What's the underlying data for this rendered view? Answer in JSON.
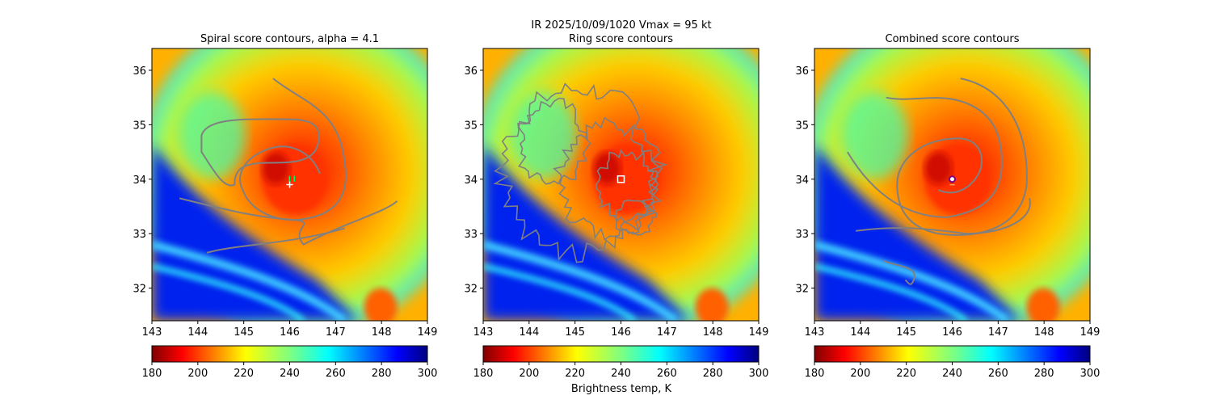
{
  "suptitle": "IR  2025/10/09/1020    Vmax = 95 kt",
  "colorbar_label": "Brightness temp, K",
  "chart_data": [
    {
      "type": "heatmap",
      "title": "Spiral score contours, alpha =  4.1",
      "xlim": [
        143,
        149
      ],
      "ylim": [
        31.4,
        36.4
      ],
      "xticks": [
        143,
        144,
        145,
        146,
        147,
        148,
        149
      ],
      "yticks": [
        32,
        33,
        34,
        35,
        36
      ],
      "colorbar": {
        "min": 180,
        "max": 300,
        "ticks": [
          180,
          200,
          220,
          240,
          260,
          280,
          300
        ],
        "colormap": "jet_r"
      },
      "marker": {
        "symbol": "+",
        "x": 146.0,
        "y": 33.9,
        "color": "#ffffff"
      },
      "marker2": {
        "symbol": "+",
        "x": 146.05,
        "y": 34.0,
        "color": "#00ff66"
      }
    },
    {
      "type": "heatmap",
      "title": "Ring score contours",
      "xlim": [
        143,
        149
      ],
      "ylim": [
        31.4,
        36.4
      ],
      "xticks": [
        143,
        144,
        145,
        146,
        147,
        148,
        149
      ],
      "yticks": [
        32,
        33,
        34,
        35,
        36
      ],
      "colorbar": {
        "min": 180,
        "max": 300,
        "ticks": [
          180,
          200,
          220,
          240,
          260,
          280,
          300
        ],
        "colormap": "jet_r"
      },
      "marker": {
        "symbol": "square",
        "x": 146.0,
        "y": 34.0,
        "color": "#ffffff"
      }
    },
    {
      "type": "heatmap",
      "title": "Combined score contours",
      "xlim": [
        143,
        149
      ],
      "ylim": [
        31.4,
        36.4
      ],
      "xticks": [
        143,
        144,
        145,
        146,
        147,
        148,
        149
      ],
      "yticks": [
        32,
        33,
        34,
        35,
        36
      ],
      "colorbar": {
        "min": 180,
        "max": 300,
        "ticks": [
          180,
          200,
          220,
          240,
          260,
          280,
          300
        ],
        "colormap": "jet_r"
      },
      "marker": {
        "symbol": "circle",
        "x": 146.0,
        "y": 34.0,
        "color": "#800080"
      }
    }
  ],
  "colors": {
    "contour": "#808080",
    "axis": "#000000"
  }
}
